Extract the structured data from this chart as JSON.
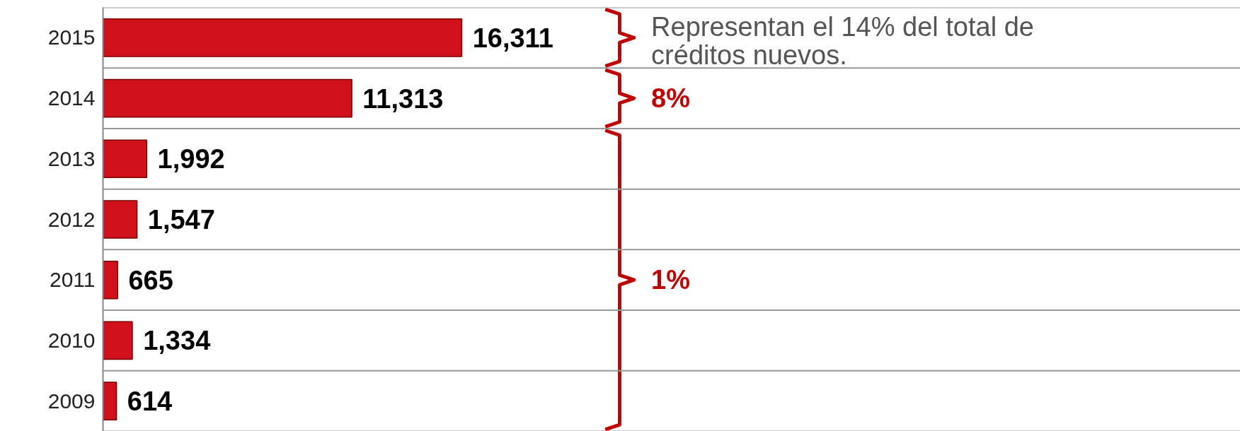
{
  "chart_data": {
    "type": "bar",
    "orientation": "horizontal",
    "categories": [
      "2015",
      "2014",
      "2013",
      "2012",
      "2011",
      "2010",
      "2009"
    ],
    "values": [
      16311,
      11313,
      1992,
      1547,
      665,
      1334,
      614
    ],
    "value_labels": [
      "16,311",
      "11,313",
      "1,992",
      "1,547",
      "665",
      "1,334",
      "614"
    ],
    "color": "#d0101a",
    "grid": "y",
    "tick_labels": "y",
    "annotations": [
      "Representan el 14% del total de créditos nuevos.",
      "8%",
      "1%"
    ]
  }
}
